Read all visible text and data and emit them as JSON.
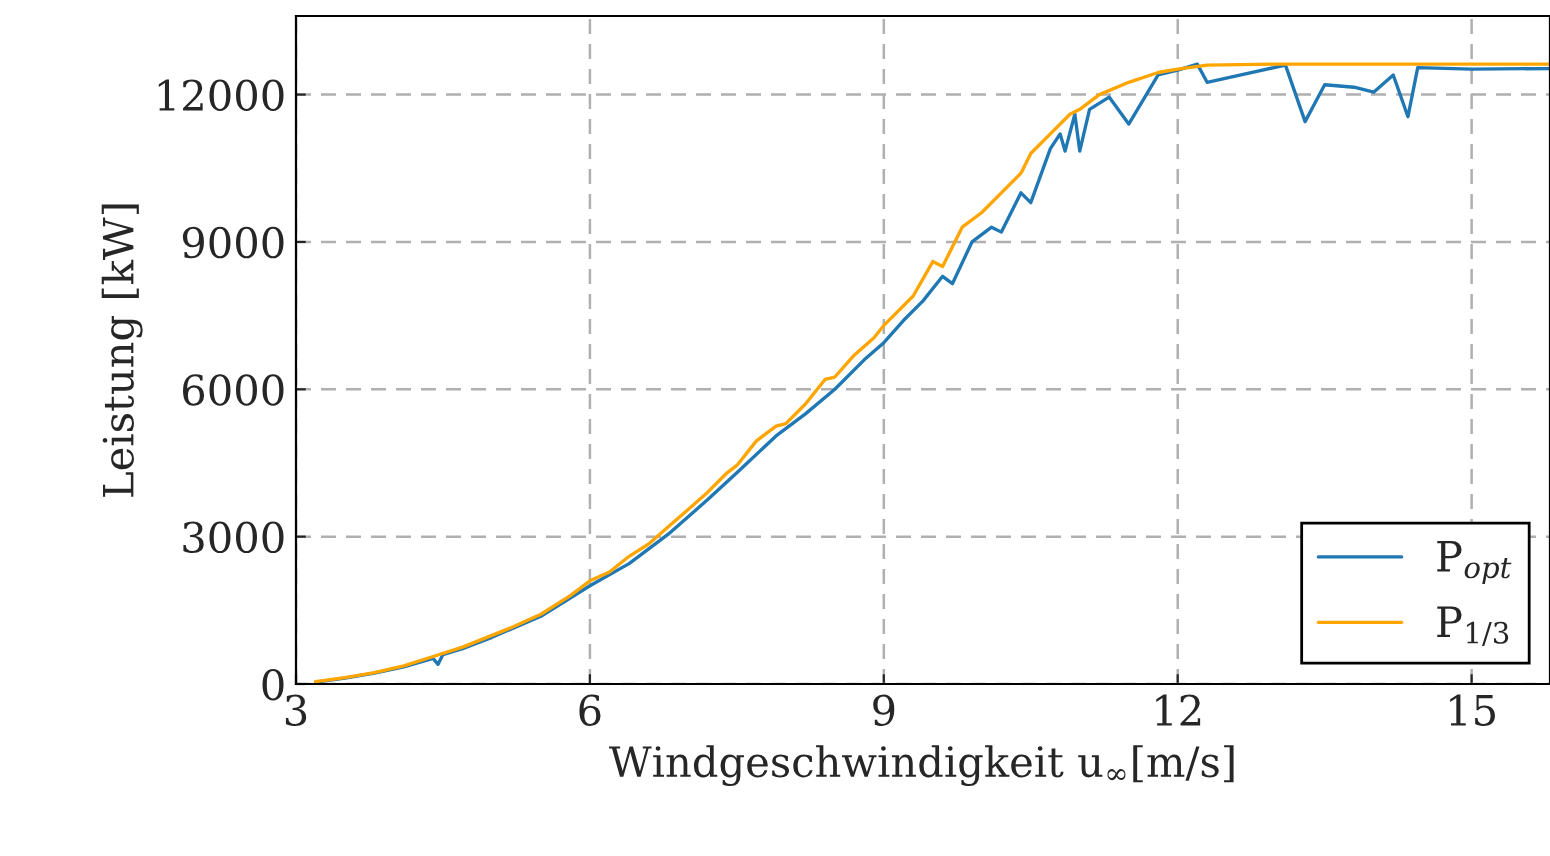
{
  "chart_data": {
    "type": "line",
    "xlabel": "Windgeschwindigkeit u$_{∞}$[m/s]",
    "ylabel": "Leistung [kW]",
    "xlim": [
      3,
      15.8
    ],
    "xticks": [
      3,
      6,
      9,
      12,
      15
    ],
    "ylim": [
      0,
      13600
    ],
    "yticks": [
      0,
      3000,
      6000,
      9000,
      12000
    ],
    "grid": true,
    "legend": "bottom right",
    "line_style": "solid",
    "series": [
      {
        "name": "P$_{opt}$",
        "color": "#1f77b4",
        "x": [
          3.2,
          3.5,
          3.8,
          4.1,
          4.4,
          4.45,
          4.5,
          4.7,
          5.0,
          5.5,
          6.0,
          6.4,
          6.8,
          7.2,
          7.5,
          7.9,
          8.2,
          8.5,
          8.8,
          9.0,
          9.2,
          9.4,
          9.6,
          9.7,
          9.9,
          10.1,
          10.2,
          10.4,
          10.5,
          10.7,
          10.8,
          10.85,
          10.95,
          11.0,
          11.1,
          11.3,
          11.5,
          11.8,
          12.0,
          12.2,
          12.3,
          13.1,
          13.3,
          13.5,
          13.8,
          14.0,
          14.2,
          14.35,
          14.45,
          15.0,
          15.8
        ],
        "values": [
          40,
          120,
          220,
          350,
          520,
          400,
          600,
          720,
          950,
          1380,
          2000,
          2450,
          3050,
          3750,
          4300,
          5050,
          5500,
          6000,
          6600,
          6950,
          7400,
          7800,
          8300,
          8150,
          9000,
          9300,
          9200,
          10000,
          9800,
          10900,
          11200,
          10850,
          11600,
          10850,
          11700,
          11950,
          11400,
          12400,
          12500,
          12620,
          12250,
          12600,
          11450,
          12200,
          12150,
          12050,
          12400,
          11550,
          12550,
          12520,
          12530
        ]
      },
      {
        "name": "P$_{1/3}$",
        "color": "#ffa500",
        "x": [
          3.2,
          3.5,
          3.8,
          4.1,
          4.4,
          4.7,
          5.0,
          5.2,
          5.5,
          5.8,
          6.0,
          6.2,
          6.4,
          6.6,
          6.8,
          7.0,
          7.2,
          7.4,
          7.5,
          7.7,
          7.9,
          8.0,
          8.2,
          8.4,
          8.5,
          8.7,
          8.9,
          9.0,
          9.1,
          9.3,
          9.5,
          9.6,
          9.8,
          10.0,
          10.2,
          10.4,
          10.5,
          10.7,
          10.9,
          11.0,
          11.2,
          11.5,
          11.8,
          12.0,
          12.3,
          13.0,
          15.8
        ],
        "values": [
          50,
          130,
          230,
          370,
          560,
          750,
          990,
          1150,
          1420,
          1800,
          2100,
          2280,
          2600,
          2850,
          3200,
          3550,
          3900,
          4300,
          4450,
          4950,
          5250,
          5300,
          5700,
          6200,
          6250,
          6700,
          7050,
          7300,
          7500,
          7900,
          8600,
          8500,
          9300,
          9600,
          10000,
          10400,
          10800,
          11200,
          11600,
          11700,
          12000,
          12250,
          12450,
          12520,
          12600,
          12620,
          12620
        ]
      }
    ]
  }
}
